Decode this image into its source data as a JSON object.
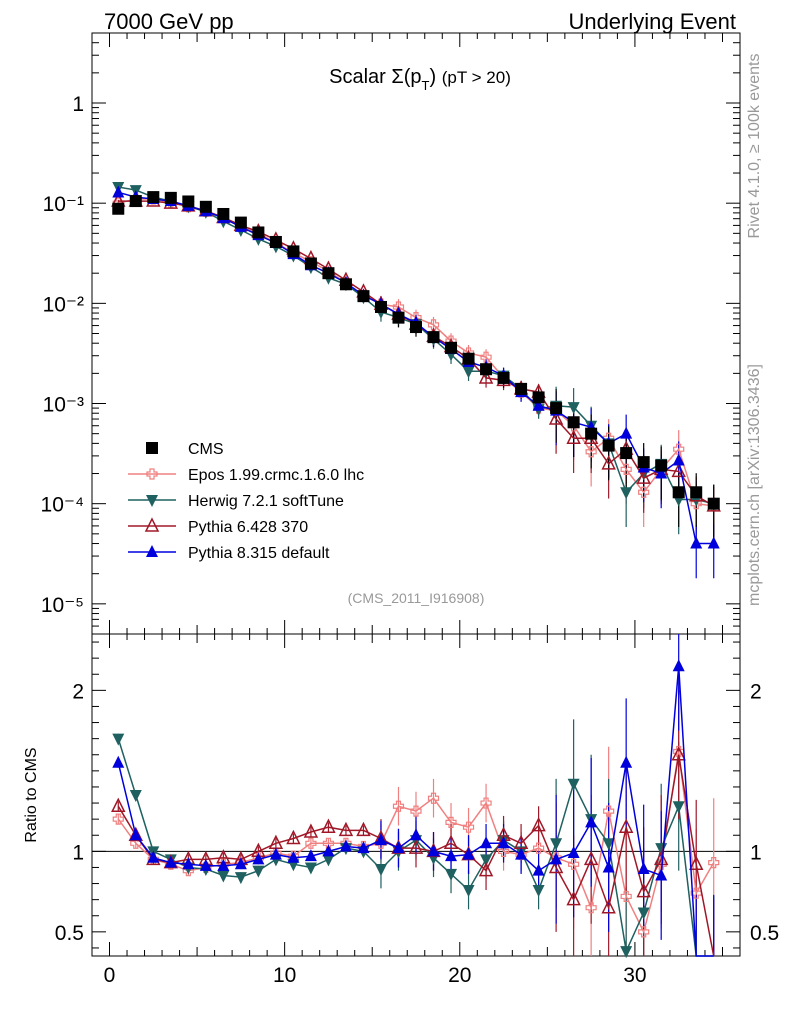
{
  "header": {
    "left_title": "7000 GeV pp",
    "right_title": "Underlying Event"
  },
  "side_labels": {
    "rivet": "Rivet 4.1.0, ≥ 100k events",
    "mcplots": "mcplots.cern.ch [arXiv:1306.3436]"
  },
  "chart_data": [
    {
      "type": "scatter",
      "title": "Scalar Σ(p_T) (pT > 20)",
      "title_parts": {
        "main": "Scalar Σ(p",
        "sub": "T",
        "close": ")",
        "tail": "(pT > 20)"
      },
      "analysis_label": "(CMS_2011_I916908)",
      "y_scale": "log",
      "ylim": [
        5e-06,
        5
      ],
      "xlim": [
        -1,
        36
      ],
      "y_ticks": [
        {
          "v": 1,
          "label": "1"
        },
        {
          "v": 0.1,
          "label": "10⁻¹"
        },
        {
          "v": 0.01,
          "label": "10⁻²"
        },
        {
          "v": 0.001,
          "label": "10⁻³"
        },
        {
          "v": 0.0001,
          "label": "10⁻⁴"
        },
        {
          "v": 1e-05,
          "label": "10⁻⁵"
        }
      ],
      "legend_placement": "lower-left",
      "x": [
        0.5,
        1.5,
        2.5,
        3.5,
        4.5,
        5.5,
        6.5,
        7.5,
        8.5,
        9.5,
        10.5,
        11.5,
        12.5,
        13.5,
        14.5,
        15.5,
        16.5,
        17.5,
        18.5,
        19.5,
        20.5,
        21.5,
        22.5,
        23.5,
        24.5,
        25.5,
        26.5,
        27.5,
        28.5,
        29.5,
        30.5,
        31.5,
        32.5,
        33.5,
        34.5
      ],
      "series": [
        {
          "name": "CMS",
          "key": "cms",
          "color": "#000000",
          "marker": "square",
          "values": [
            0.088,
            0.105,
            0.115,
            0.113,
            0.104,
            0.092,
            0.078,
            0.064,
            0.051,
            0.041,
            0.033,
            0.025,
            0.02,
            0.0155,
            0.0118,
            0.0092,
            0.0072,
            0.0058,
            0.0046,
            0.0036,
            0.0028,
            0.0022,
            0.0018,
            0.0014,
            0.00115,
            0.0009,
            0.00065,
            0.0005,
            0.00038,
            0.00032,
            0.00026,
            0.00024,
            0.00013,
            0.00013,
            0.0001
          ]
        },
        {
          "name": "Epos 1.99.crmc.1.6.0 lhc",
          "key": "epos",
          "color": "#f08080",
          "marker": "cross",
          "values": [
            0.1,
            0.11,
            0.11,
            0.102,
            0.092,
            0.083,
            0.072,
            0.06,
            0.05,
            0.04,
            0.032,
            0.026,
            0.021,
            0.016,
            0.012,
            0.0098,
            0.0092,
            0.0072,
            0.0061,
            0.0042,
            0.0032,
            0.0029,
            0.0018,
            0.0013,
            0.0009,
            0.00085,
            0.0006,
            0.00033,
            0.00045,
            0.00022,
            0.00013,
            0.00022,
            0.00035,
            0.0001,
            9.5e-05
          ]
        },
        {
          "name": "Herwig 7.2.1 softTune",
          "key": "herwig",
          "color": "#1f6060",
          "marker": "triangle-down",
          "values": [
            0.145,
            0.135,
            0.115,
            0.105,
            0.093,
            0.082,
            0.066,
            0.054,
            0.044,
            0.037,
            0.03,
            0.023,
            0.018,
            0.0155,
            0.0115,
            0.0082,
            0.0072,
            0.0062,
            0.0044,
            0.0031,
            0.0021,
            0.0021,
            0.0019,
            0.0014,
            0.00088,
            0.00095,
            0.00092,
            0.0006,
            0.0004,
            0.00013,
            0.0002,
            0.00025,
            0.00011,
            0.00011,
            0.0001
          ]
        },
        {
          "name": "Pythia 6.428 370",
          "key": "py6",
          "color": "#a01828",
          "marker": "triangle-open",
          "values": [
            0.105,
            0.105,
            0.105,
            0.1,
            0.094,
            0.084,
            0.072,
            0.06,
            0.052,
            0.043,
            0.035,
            0.028,
            0.022,
            0.017,
            0.013,
            0.0098,
            0.0078,
            0.0062,
            0.0047,
            0.0037,
            0.0028,
            0.0018,
            0.0017,
            0.0014,
            0.0013,
            0.0007,
            0.00045,
            0.00045,
            0.00025,
            0.00035,
            0.00018,
            0.00022,
            0.00021,
            0.00012,
            9.5e-05
          ]
        },
        {
          "name": "Pythia 8.315 default",
          "key": "py8",
          "color": "#0000dd",
          "marker": "triangle-up",
          "values": [
            0.128,
            0.115,
            0.11,
            0.105,
            0.094,
            0.083,
            0.071,
            0.058,
            0.048,
            0.04,
            0.031,
            0.024,
            0.02,
            0.016,
            0.012,
            0.0098,
            0.0078,
            0.0064,
            0.0046,
            0.0035,
            0.0026,
            0.0023,
            0.0019,
            0.0013,
            0.00095,
            0.00085,
            0.00065,
            0.00058,
            0.0004,
            0.0005,
            0.00023,
            0.0002,
            0.00027,
            4e-05,
            4e-05
          ]
        }
      ]
    },
    {
      "type": "scatter",
      "ylabel": "Ratio to CMS",
      "ylim": [
        0.35,
        2.35
      ],
      "y_ticks": [
        {
          "v": 2,
          "label": "2"
        },
        {
          "v": 1,
          "label": "1"
        },
        {
          "v": 0.5,
          "label": "0.5"
        }
      ],
      "x_ticks": [
        {
          "v": 0,
          "label": "0"
        },
        {
          "v": 10,
          "label": "10"
        },
        {
          "v": 20,
          "label": "20"
        },
        {
          "v": 30,
          "label": "30"
        }
      ],
      "reference_line": 1,
      "series": [
        {
          "key": "epos",
          "values": [
            1.2,
            1.05,
            0.95,
            0.92,
            0.88,
            0.9,
            0.92,
            0.93,
            0.96,
            0.99,
            0.97,
            1.05,
            1.05,
            1.05,
            1.03,
            1.05,
            1.28,
            1.25,
            1.33,
            1.18,
            1.15,
            1.3,
            1.0,
            0.98,
            1.02,
            0.96,
            0.92,
            0.65,
            1.25,
            0.72,
            0.5,
            0.92,
            1.62,
            0.74,
            0.93
          ]
        },
        {
          "key": "herwig",
          "values": [
            1.7,
            1.35,
            1.0,
            0.95,
            0.9,
            0.89,
            0.85,
            0.84,
            0.88,
            0.95,
            0.92,
            0.9,
            0.95,
            1.02,
            1.0,
            0.89,
            1.0,
            1.07,
            0.96,
            0.86,
            0.76,
            0.95,
            1.07,
            1.0,
            0.76,
            1.05,
            1.42,
            1.2,
            1.05,
            0.38,
            0.62,
            1.02,
            1.28,
            0.32,
            0.32
          ]
        },
        {
          "key": "py6",
          "values": [
            1.28,
            1.1,
            0.95,
            0.93,
            0.95,
            0.95,
            0.96,
            0.95,
            1.0,
            1.05,
            1.08,
            1.12,
            1.15,
            1.13,
            1.13,
            1.08,
            1.02,
            1.02,
            1.0,
            1.05,
            0.98,
            0.88,
            1.1,
            1.05,
            1.16,
            0.9,
            0.7,
            0.95,
            0.65,
            1.15,
            0.75,
            0.95,
            1.6,
            0.92,
            0.3
          ]
        },
        {
          "key": "py8",
          "values": [
            1.55,
            1.1,
            0.96,
            0.93,
            0.92,
            0.91,
            0.91,
            0.92,
            0.95,
            0.98,
            0.96,
            0.97,
            1.0,
            1.03,
            1.02,
            1.07,
            1.02,
            1.1,
            1.0,
            0.97,
            0.98,
            1.05,
            1.05,
            0.98,
            0.88,
            0.95,
            0.99,
            1.18,
            0.9,
            1.55,
            0.89,
            0.85,
            2.15,
            0.33,
            0.33
          ]
        }
      ]
    }
  ]
}
